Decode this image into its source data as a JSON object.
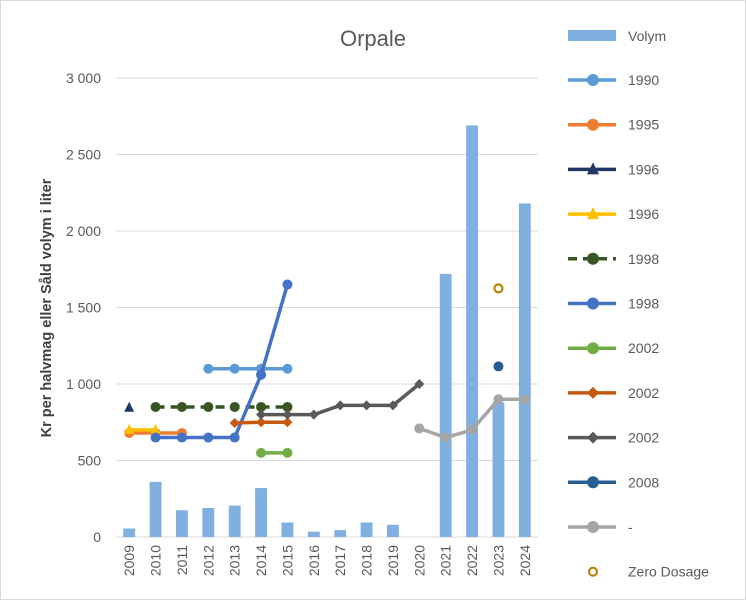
{
  "chart_data": {
    "type": "bar",
    "title": "Orpale",
    "ylabel": "Kr per halvmag eller Såld volym i liter",
    "ylim": [
      0,
      3000
    ],
    "yticks": [
      0,
      500,
      1000,
      1500,
      2000,
      2500,
      3000
    ],
    "ytick_labels": [
      "0",
      "500",
      "1 000",
      "1 500",
      "2 000",
      "2 500",
      "3 000"
    ],
    "categories": [
      "2009",
      "2010",
      "2011",
      "2012",
      "2013",
      "2014",
      "2015",
      "2016",
      "2017",
      "2018",
      "2019",
      "2020",
      "2021",
      "2022",
      "2023",
      "2024"
    ],
    "grid": true,
    "legend_position": "right",
    "bars": {
      "name": "Volym",
      "color": "#7fb0e0",
      "values": [
        55,
        360,
        175,
        190,
        205,
        320,
        95,
        35,
        45,
        95,
        80,
        null,
        1720,
        2690,
        880,
        2180
      ]
    },
    "series": [
      {
        "name": "1990",
        "color": "#5b9bd5",
        "marker": "circle",
        "dash": false,
        "points": [
          [
            "2012",
            1100
          ],
          [
            "2013",
            1100
          ],
          [
            "2014",
            1100
          ],
          [
            "2015",
            1100
          ]
        ]
      },
      {
        "name": "1995",
        "color": "#ed7d31",
        "marker": "circle",
        "dash": false,
        "points": [
          [
            "2009",
            680
          ],
          [
            "2010",
            680
          ],
          [
            "2011",
            680
          ]
        ]
      },
      {
        "name": "1996",
        "color": "#203864",
        "marker": "triangle",
        "dash": false,
        "points": [
          [
            "2009",
            845
          ]
        ]
      },
      {
        "name": "1996",
        "color": "#ffc000",
        "marker": "triangle",
        "dash": false,
        "points": [
          [
            "2009",
            700
          ],
          [
            "2010",
            700
          ]
        ]
      },
      {
        "name": "1998",
        "color": "#375623",
        "marker": "circle",
        "dash": true,
        "points": [
          [
            "2010",
            850
          ],
          [
            "2011",
            850
          ],
          [
            "2012",
            850
          ],
          [
            "2013",
            850
          ],
          [
            "2014",
            850
          ],
          [
            "2015",
            850
          ]
        ]
      },
      {
        "name": "1998",
        "color": "#4472c4",
        "marker": "circle",
        "dash": false,
        "points": [
          [
            "2010",
            650
          ],
          [
            "2011",
            650
          ],
          [
            "2012",
            650
          ],
          [
            "2013",
            650
          ],
          [
            "2014",
            1060
          ],
          [
            "2015",
            1650
          ]
        ]
      },
      {
        "name": "2002",
        "color": "#70ad47",
        "marker": "circle",
        "dash": false,
        "points": [
          [
            "2014",
            550
          ],
          [
            "2015",
            550
          ]
        ]
      },
      {
        "name": "2002",
        "color": "#c55a11",
        "marker": "diamond",
        "dash": false,
        "points": [
          [
            "2013",
            745
          ],
          [
            "2014",
            750
          ],
          [
            "2015",
            750
          ]
        ]
      },
      {
        "name": "2002",
        "color": "#595959",
        "marker": "diamond",
        "dash": false,
        "points": [
          [
            "2014",
            800
          ],
          [
            "2015",
            800
          ],
          [
            "2016",
            800
          ],
          [
            "2017",
            860
          ],
          [
            "2018",
            860
          ],
          [
            "2019",
            860
          ],
          [
            "2020",
            1000
          ]
        ]
      },
      {
        "name": "2008",
        "color": "#255e91",
        "marker": "circle",
        "dash": false,
        "points": [
          [
            "2023",
            1115
          ]
        ]
      },
      {
        "name": "-",
        "color": "#a5a5a5",
        "marker": "circle",
        "dash": false,
        "points": [
          [
            "2020",
            710
          ],
          [
            "2021",
            650
          ],
          [
            "2022",
            700
          ],
          [
            "2023",
            900
          ],
          [
            "2024",
            900
          ]
        ]
      },
      {
        "name": "Zero Dosage",
        "color": "#b8860b",
        "marker": "ring",
        "dash": false,
        "no_line": true,
        "points": [
          [
            "2023",
            1625
          ]
        ]
      }
    ]
  }
}
